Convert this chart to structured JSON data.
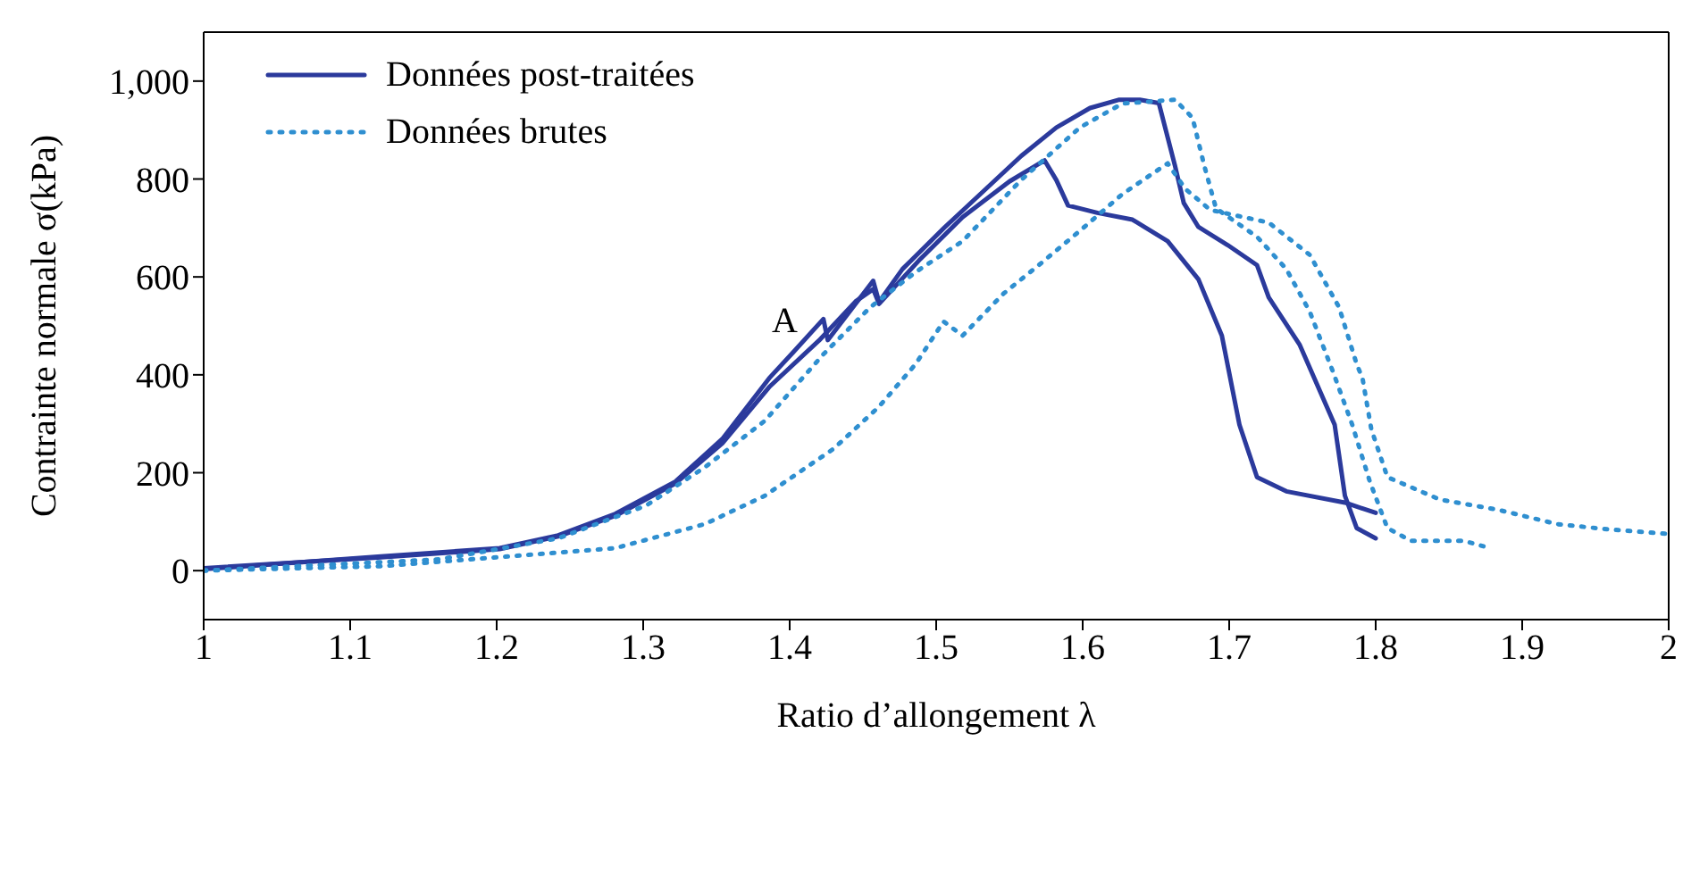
{
  "chart_data": {
    "type": "line",
    "xlabel": "Ratio d’allongement λ",
    "ylabel": "Contrainte normale σ(kPa)",
    "xlim": [
      1,
      2
    ],
    "xticks": [
      1,
      1.1,
      1.2,
      1.3,
      1.4,
      1.5,
      1.6,
      1.7,
      1.8,
      1.9,
      2
    ],
    "ylim": [
      -100,
      1100
    ],
    "yticks": [
      0,
      200,
      400,
      600,
      800,
      {
        "value": 1000,
        "label": "1,000"
      }
    ],
    "legend": "top left",
    "annotations": [
      {
        "text": "A",
        "x": 1.42,
        "y": 514
      }
    ],
    "series": [
      {
        "name": "Données post-traitées",
        "color": "#2b3a9c",
        "line_style": "solid",
        "x": [
          1,
          1.121,
          1.202,
          1.242,
          1.281,
          1.322,
          1.354,
          1.386,
          1.403,
          1.423,
          1.426,
          1.457,
          1.461,
          1.477,
          1.506,
          1.534,
          1.558,
          1.582,
          1.605,
          1.625,
          1.639,
          1.652,
          1.663,
          1.669,
          1.679,
          1.699,
          1.719,
          1.727,
          1.748,
          1.772,
          1.779,
          1.787,
          1.8
        ],
        "values": [
          3,
          29,
          46,
          72,
          116,
          182,
          269,
          393,
          448,
          514,
          471,
          592,
          549,
          616,
          702,
          780,
          847,
          905,
          945,
          962,
          962,
          955,
          827,
          751,
          702,
          665,
          624,
          558,
          462,
          298,
          153,
          87,
          66
        ]
      },
      {
        "color": "#2b3a9c",
        "line_style": "solid",
        "x": [
          1,
          1.121,
          1.202,
          1.242,
          1.281,
          1.322,
          1.354,
          1.386,
          1.42,
          1.445,
          1.457,
          1.461,
          1.489,
          1.518,
          1.55,
          1.574,
          1.582,
          1.59,
          1.61,
          1.634,
          1.658,
          1.679,
          1.695,
          1.707,
          1.719,
          1.739,
          1.779,
          1.8
        ],
        "values": [
          5,
          27,
          44,
          70,
          112,
          178,
          260,
          375,
          470,
          550,
          575,
          545,
          636,
          722,
          795,
          838,
          798,
          746,
          731,
          717,
          673,
          595,
          480,
          298,
          191,
          162,
          139,
          118
        ]
      },
      {
        "name": "Données brutes",
        "color": "#2f8fd0",
        "line_style": "dotted",
        "x": [
          1,
          1.161,
          1.242,
          1.302,
          1.342,
          1.383,
          1.423,
          1.455,
          1.486,
          1.518,
          1.558,
          1.598,
          1.627,
          1.663,
          1.675,
          1.683,
          1.691,
          1.719,
          1.739,
          1.755,
          1.771,
          1.784,
          1.796,
          1.808,
          1.824,
          1.86,
          1.878
        ],
        "values": [
          0,
          23,
          66,
          133,
          211,
          306,
          442,
          538,
          610,
          673,
          798,
          905,
          954,
          962,
          925,
          827,
          740,
          682,
          616,
          529,
          405,
          298,
          182,
          87,
          61,
          61,
          46
        ]
      },
      {
        "color": "#2f8fd0",
        "line_style": "dotted",
        "x": [
          1,
          1.121,
          1.281,
          1.342,
          1.383,
          1.43,
          1.461,
          1.486,
          1.505,
          1.518,
          1.546,
          1.57,
          1.598,
          1.627,
          1.658,
          1.67,
          1.687,
          1.727,
          1.755,
          1.775,
          1.787,
          1.791,
          1.797,
          1.808,
          1.844,
          1.884,
          1.924,
          1.96,
          1.999
        ],
        "values": [
          0,
          9,
          46,
          95,
          153,
          249,
          335,
          422,
          509,
          480,
          566,
          624,
          694,
          769,
          832,
          780,
          737,
          711,
          645,
          538,
          422,
          393,
          289,
          191,
          145,
          124,
          95,
          84,
          75
        ]
      }
    ]
  }
}
